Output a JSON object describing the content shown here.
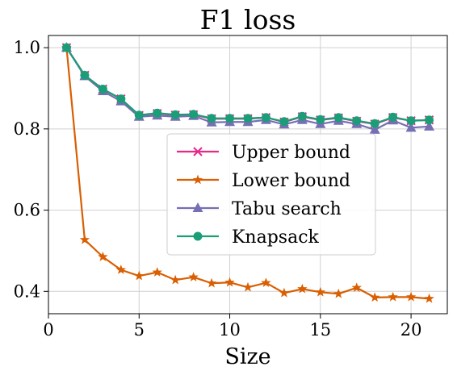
{
  "chart_data": {
    "type": "line",
    "title": "F1 loss",
    "xlabel": "Size",
    "ylabel": "",
    "xlim": [
      0,
      22
    ],
    "ylim": [
      0.345,
      1.03
    ],
    "xticks": [
      0,
      5,
      10,
      15,
      20
    ],
    "xtick_labels": [
      "0",
      "5",
      "10",
      "15",
      "20"
    ],
    "yticks": [
      0.4,
      0.6,
      0.8,
      1.0
    ],
    "ytick_labels": [
      "0.4",
      "0.6",
      "0.8",
      "1.0"
    ],
    "grid": true,
    "legend_position": "center-right",
    "x": [
      1,
      2,
      3,
      4,
      5,
      6,
      7,
      8,
      9,
      10,
      11,
      12,
      13,
      14,
      15,
      16,
      17,
      18,
      19,
      20,
      21
    ],
    "series": [
      {
        "name": "Upper bound",
        "color": "#e7298a",
        "marker": "x",
        "values": [
          1.0,
          0.932,
          0.898,
          0.874,
          0.833,
          0.838,
          0.834,
          0.835,
          0.825,
          0.825,
          0.825,
          0.828,
          0.817,
          0.83,
          0.822,
          0.827,
          0.819,
          0.812,
          0.828,
          0.82,
          0.822
        ]
      },
      {
        "name": "Lower bound",
        "color": "#d95f02",
        "marker": "star",
        "values": [
          1.0,
          0.527,
          0.485,
          0.453,
          0.438,
          0.447,
          0.428,
          0.435,
          0.42,
          0.422,
          0.41,
          0.421,
          0.396,
          0.406,
          0.398,
          0.394,
          0.409,
          0.385,
          0.386,
          0.386,
          0.382
        ]
      },
      {
        "name": "Tabu search",
        "color": "#7570b3",
        "marker": "triangle",
        "values": [
          1.0,
          0.93,
          0.893,
          0.868,
          0.83,
          0.833,
          0.83,
          0.832,
          0.816,
          0.817,
          0.817,
          0.822,
          0.811,
          0.822,
          0.812,
          0.82,
          0.812,
          0.798,
          0.821,
          0.803,
          0.806
        ]
      },
      {
        "name": "Knapsack",
        "color": "#1b9e77",
        "marker": "circle",
        "values": [
          1.0,
          0.932,
          0.898,
          0.874,
          0.834,
          0.839,
          0.835,
          0.836,
          0.826,
          0.826,
          0.826,
          0.828,
          0.818,
          0.831,
          0.823,
          0.828,
          0.82,
          0.813,
          0.829,
          0.82,
          0.822
        ]
      }
    ]
  }
}
